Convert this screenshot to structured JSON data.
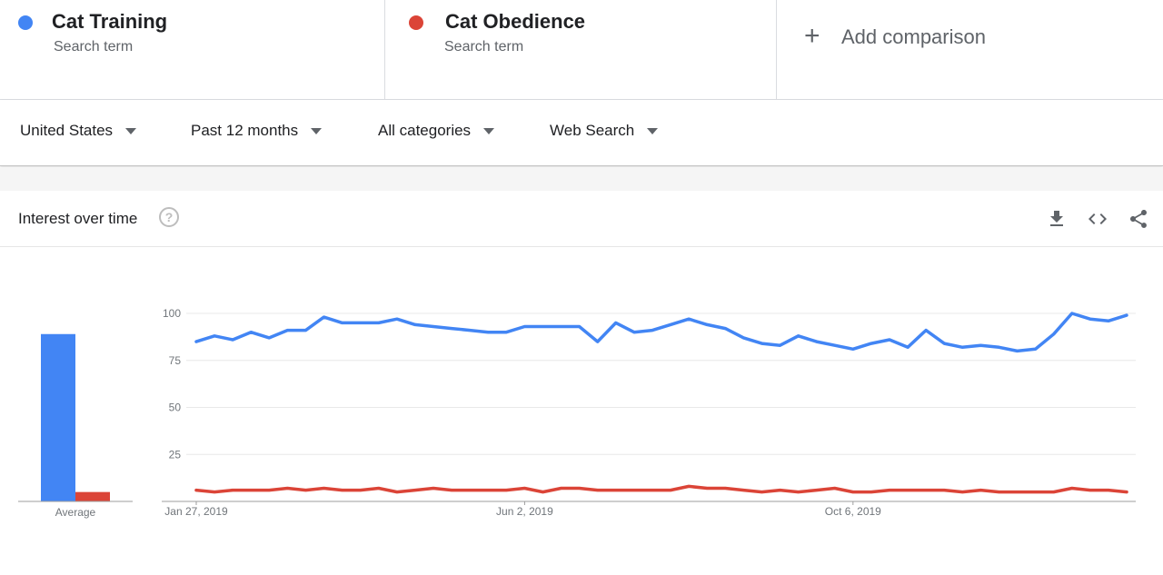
{
  "terms": [
    {
      "title": "Cat Training",
      "subtitle": "Search term",
      "color": "#4285f4"
    },
    {
      "title": "Cat Obedience",
      "subtitle": "Search term",
      "color": "#db4437"
    }
  ],
  "add_comparison": {
    "icon": "plus-icon",
    "label": "Add comparison"
  },
  "filters": [
    {
      "label": "United States"
    },
    {
      "label": "Past 12 months"
    },
    {
      "label": "All categories"
    },
    {
      "label": "Web Search"
    }
  ],
  "card": {
    "title": "Interest over time",
    "help_glyph": "?",
    "icons": [
      "download-icon",
      "embed-code-icon",
      "share-icon"
    ]
  },
  "chart_data": {
    "type": "line",
    "title": "",
    "xlabel": "",
    "ylabel": "",
    "ylim": [
      0,
      100
    ],
    "y_ticks": [
      25,
      50,
      75,
      100
    ],
    "grid": true,
    "x_tick_labels": [
      {
        "index": 0,
        "label": "Jan 27, 2019"
      },
      {
        "index": 18,
        "label": "Jun 2, 2019"
      },
      {
        "index": 36,
        "label": "Oct 6, 2019"
      }
    ],
    "average": {
      "label": "Average",
      "values": [
        89,
        5
      ]
    },
    "series": [
      {
        "name": "Cat Training",
        "color": "#4285f4",
        "values": [
          85,
          88,
          86,
          90,
          87,
          91,
          91,
          98,
          95,
          95,
          95,
          97,
          94,
          93,
          92,
          91,
          90,
          90,
          93,
          93,
          93,
          93,
          85,
          95,
          90,
          91,
          94,
          97,
          94,
          92,
          87,
          84,
          83,
          88,
          85,
          83,
          81,
          84,
          86,
          82,
          91,
          84,
          82,
          83,
          82,
          80,
          81,
          89,
          100,
          97,
          96,
          99
        ]
      },
      {
        "name": "Cat Obedience",
        "color": "#db4437",
        "values": [
          6,
          5,
          6,
          6,
          6,
          7,
          6,
          7,
          6,
          6,
          7,
          5,
          6,
          7,
          6,
          6,
          6,
          6,
          7,
          5,
          7,
          7,
          6,
          6,
          6,
          6,
          6,
          8,
          7,
          7,
          6,
          5,
          6,
          5,
          6,
          7,
          5,
          5,
          6,
          6,
          6,
          6,
          5,
          6,
          5,
          5,
          5,
          5,
          7,
          6,
          6,
          5
        ]
      }
    ]
  }
}
